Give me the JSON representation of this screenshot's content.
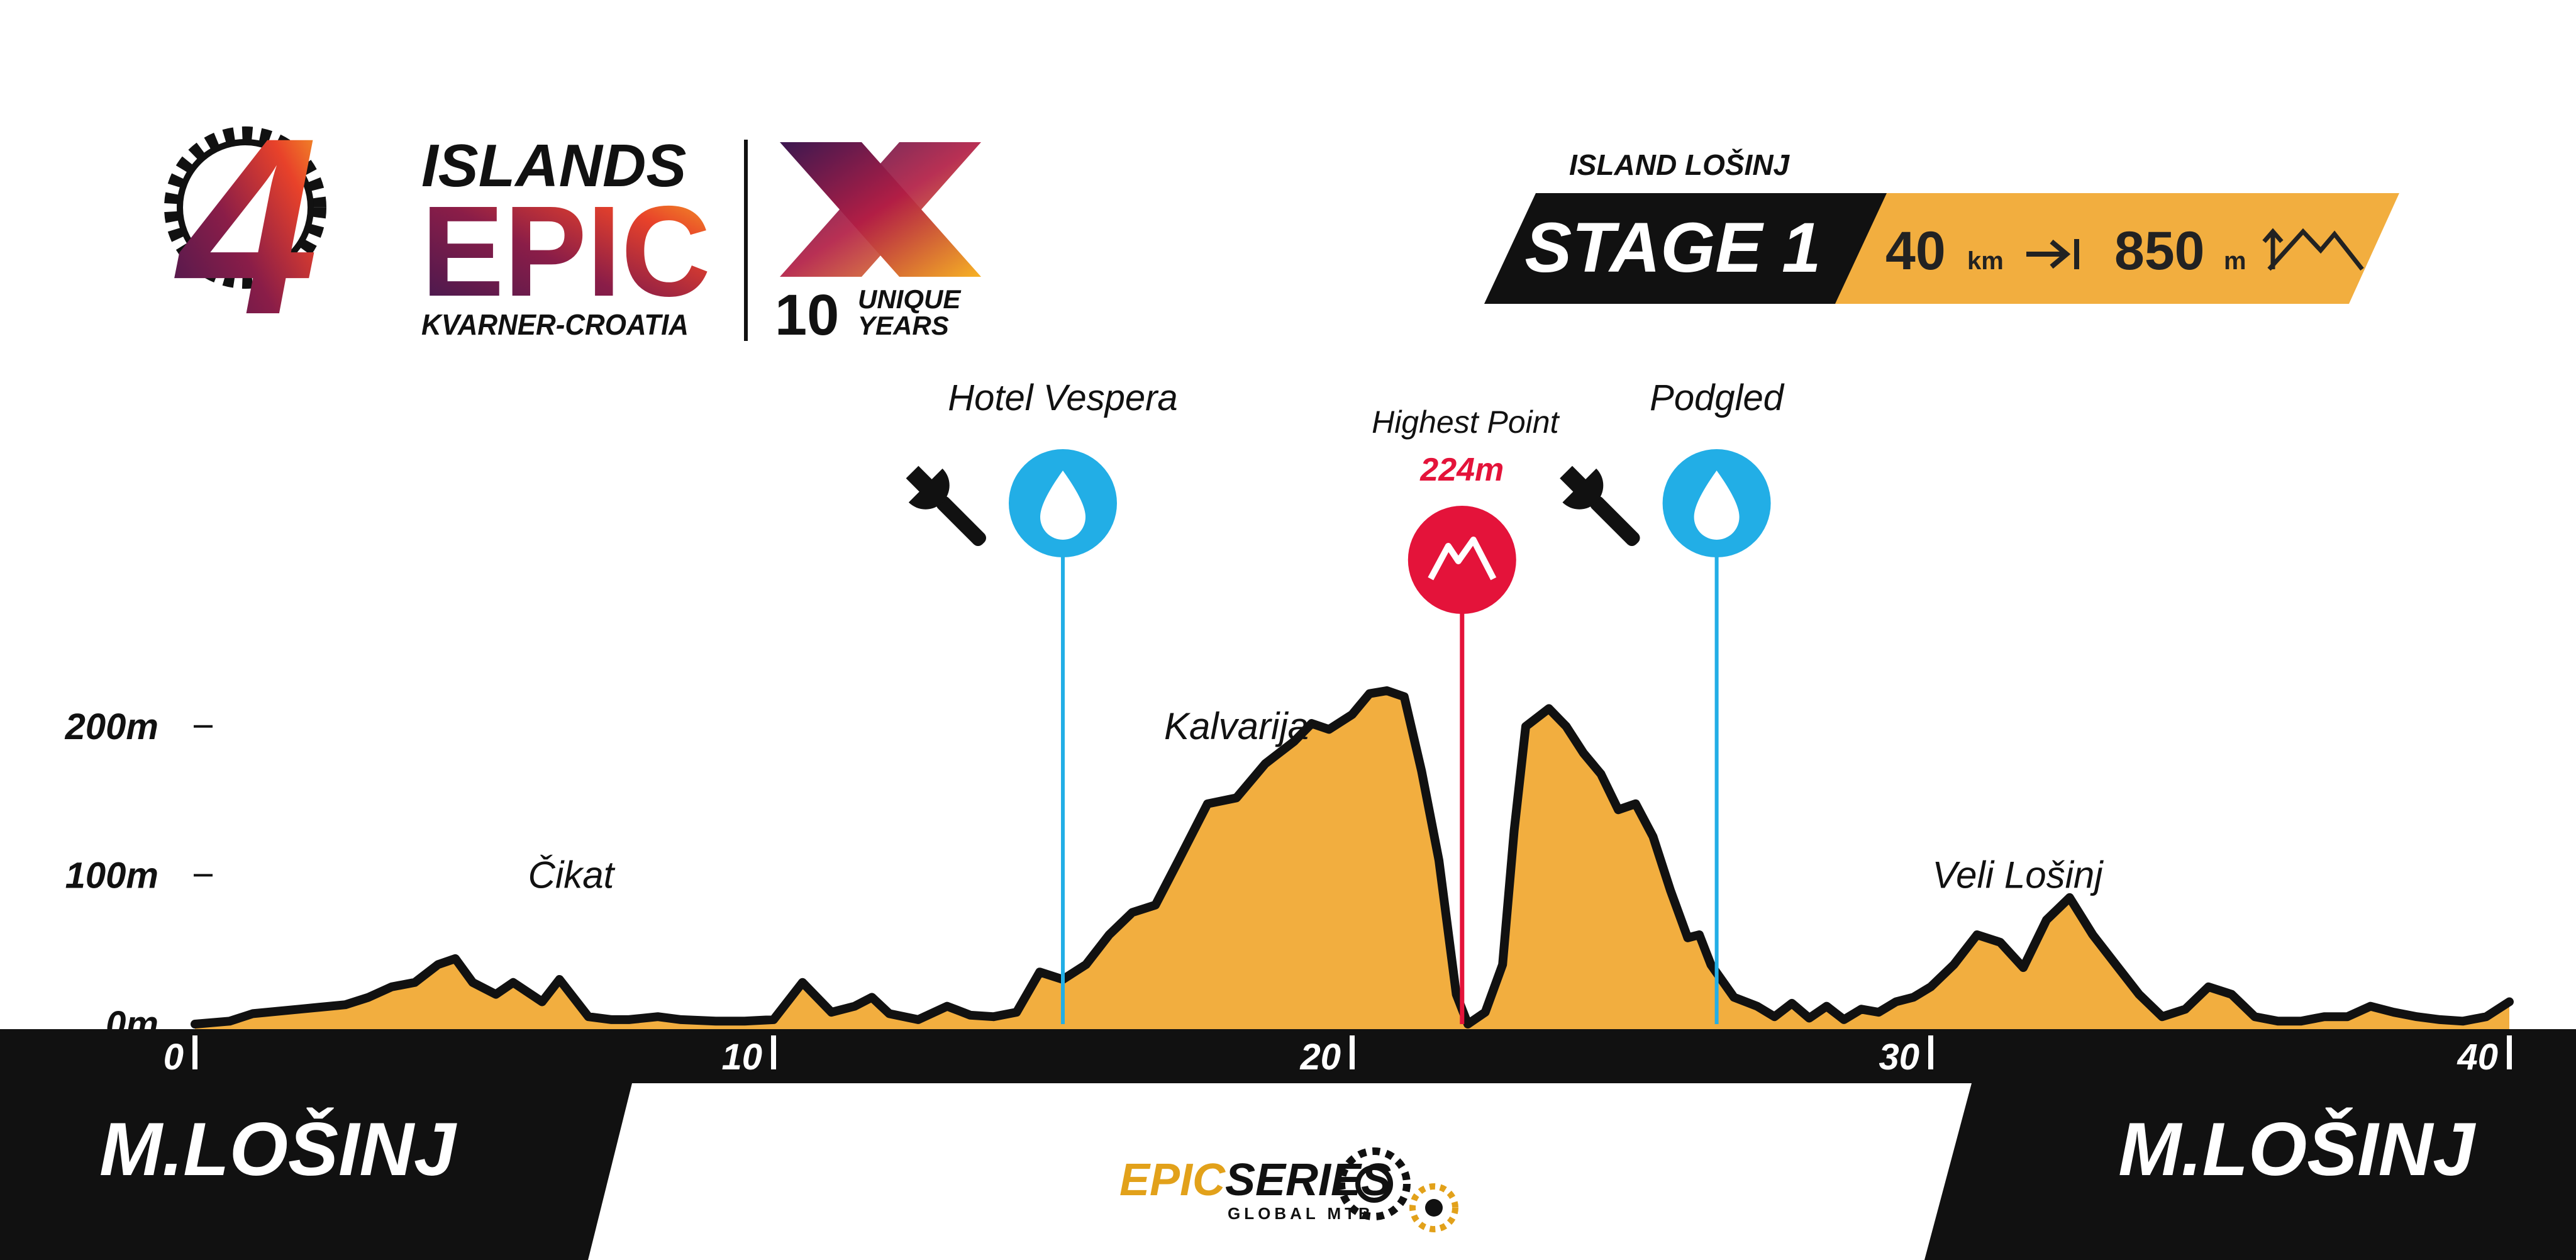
{
  "brand": {
    "number": "4",
    "line1": "ISLANDS",
    "line2": "EPIC",
    "line3": "KVARNER-CROATIA",
    "anniversary_mark": "X",
    "years_number": "10",
    "years_line1": "UNIQUE",
    "years_line2": "YEARS"
  },
  "stage": {
    "island": "ISLAND LOŠINJ",
    "title": "STAGE 1",
    "distance_value": "40",
    "distance_unit": "km",
    "climb_value": "850",
    "climb_unit": "m",
    "distance_icon": "distance-arrow-icon",
    "climb_icon": "mountains-icon"
  },
  "colors": {
    "profile_fill": "#F2AE3F",
    "profile_stroke": "#111111",
    "water_marker": "#22AEE6",
    "summit_marker": "#E4133A",
    "banner_gold": "#F2AE3F",
    "dark": "#111111"
  },
  "chart_data": {
    "type": "area",
    "x_unit": "km",
    "y_unit": "m",
    "xlim": [
      0,
      40
    ],
    "ylim": [
      0,
      224
    ],
    "x_ticks": [
      0,
      10,
      20,
      30,
      40
    ],
    "x_tick_labels": [
      "0",
      "10",
      "20",
      "30",
      "40"
    ],
    "y_ticks": [
      0,
      100,
      200
    ],
    "y_tick_labels": [
      "0m",
      "100m",
      "200m"
    ],
    "profile": {
      "x": [
        0,
        0.6,
        1.0,
        1.8,
        2.6,
        3.0,
        3.4,
        3.8,
        4.2,
        4.5,
        4.8,
        5.2,
        5.5,
        6.0,
        6.3,
        6.8,
        7.2,
        7.5,
        8.0,
        8.4,
        9.0,
        9.5,
        10.0,
        10.5,
        11.0,
        11.4,
        11.7,
        12.0,
        12.5,
        13.0,
        13.4,
        13.8,
        14.2,
        14.6,
        15.0,
        15.4,
        15.8,
        16.2,
        16.6,
        17.0,
        17.5,
        18.0,
        18.5,
        19.0,
        19.3,
        19.6,
        20.0,
        20.3,
        20.6,
        20.9,
        21.2,
        21.5,
        21.8,
        22.0,
        22.3,
        22.6,
        22.8,
        23.0,
        23.4,
        23.7,
        24.0,
        24.3,
        24.6,
        24.9,
        25.2,
        25.5,
        25.8,
        26.0,
        26.2,
        26.6,
        27.0,
        27.3,
        27.6,
        27.9,
        28.2,
        28.5,
        28.8,
        29.1,
        29.4,
        29.7,
        30.0,
        30.4,
        30.8,
        31.2,
        31.6,
        32.0,
        32.4,
        32.8,
        33.2,
        33.6,
        34.0,
        34.4,
        34.8,
        35.2,
        35.6,
        36.0,
        36.4,
        36.8,
        37.2,
        37.6,
        38.0,
        38.4,
        38.8,
        39.2,
        39.6,
        40.0
      ],
      "y": [
        0,
        2,
        7,
        10,
        13,
        18,
        25,
        28,
        40,
        44,
        28,
        20,
        28,
        15,
        30,
        5,
        3,
        3,
        5,
        3,
        2,
        2,
        3,
        28,
        8,
        12,
        18,
        7,
        3,
        12,
        6,
        5,
        8,
        35,
        30,
        40,
        60,
        75,
        80,
        110,
        148,
        152,
        175,
        190,
        202,
        198,
        208,
        222,
        224,
        220,
        170,
        110,
        20,
        0,
        8,
        40,
        130,
        200,
        212,
        200,
        182,
        168,
        144,
        148,
        126,
        90,
        58,
        60,
        40,
        18,
        12,
        5,
        14,
        4,
        12,
        3,
        10,
        8,
        15,
        18,
        25,
        40,
        60,
        55,
        38,
        70,
        85,
        60,
        40,
        20,
        5,
        10,
        25,
        20,
        5,
        2,
        2,
        5,
        5,
        12,
        8,
        5,
        3,
        2,
        5,
        15
      ]
    },
    "points": [
      {
        "x": 15.0,
        "name": "Hotel Vespera",
        "icons": [
          "wrench-icon",
          "water-drop-icon"
        ]
      },
      {
        "x": 21.9,
        "name": "Highest Point",
        "elevation": "224m",
        "icons": [
          "summit-icon"
        ]
      },
      {
        "x": 26.3,
        "name": "Podgled",
        "icons": [
          "wrench-icon",
          "water-drop-icon"
        ]
      }
    ],
    "place_labels": [
      {
        "text": "Čikat",
        "x": 6.5,
        "y": 100
      },
      {
        "text": "Kalvarija",
        "x": 18.0,
        "y": 200
      },
      {
        "text": "Veli Lošinj",
        "x": 31.5,
        "y": 100
      }
    ],
    "start": "M.LOŠINJ",
    "finish": "M.LOŠINJ"
  },
  "footer": {
    "logo_line1": "EPIC",
    "logo_line2": "SERIES",
    "logo_tagline": "GLOBAL MTB"
  }
}
